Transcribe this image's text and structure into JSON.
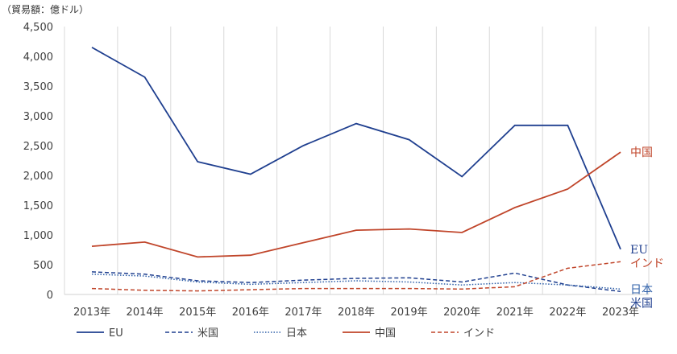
{
  "chart_data": {
    "type": "line",
    "unit_label": "（貿易額：億ドル）",
    "categories": [
      "2013年",
      "2014年",
      "2015年",
      "2016年",
      "2017年",
      "2018年",
      "2019年",
      "2020年",
      "2021年",
      "2022年",
      "2023年"
    ],
    "ylim": [
      0,
      4500
    ],
    "yticks": [
      0,
      500,
      1000,
      1500,
      2000,
      2500,
      3000,
      3500,
      4000,
      4500
    ],
    "ytick_labels": [
      "0",
      "500",
      "1,000",
      "1,500",
      "2,000",
      "2,500",
      "3,000",
      "3,500",
      "4,000",
      "4,500"
    ],
    "grid": "vertical",
    "legend_position": "bottom",
    "series": [
      {
        "name": "EU",
        "end_label": "EU",
        "color": "#1f3f8f",
        "dash": "solid",
        "values": [
          4150,
          3650,
          2230,
          2020,
          2500,
          2870,
          2600,
          1980,
          2840,
          2840,
          760
        ]
      },
      {
        "name": "米国",
        "end_label": "米国",
        "color": "#1f3f8f",
        "dash": "dashed",
        "values": [
          380,
          340,
          230,
          200,
          240,
          270,
          280,
          210,
          360,
          160,
          50
        ]
      },
      {
        "name": "日本",
        "end_label": "日本",
        "color": "#2e5fa8",
        "dash": "dotted",
        "values": [
          340,
          310,
          210,
          170,
          200,
          230,
          210,
          160,
          200,
          160,
          90
        ]
      },
      {
        "name": "中国",
        "end_label": "中国",
        "color": "#c0452a",
        "dash": "solid",
        "values": [
          810,
          880,
          630,
          660,
          870,
          1080,
          1100,
          1040,
          1460,
          1770,
          2390
        ]
      },
      {
        "name": "インド",
        "end_label": "インド",
        "color": "#c0452a",
        "dash": "dashed",
        "values": [
          100,
          70,
          60,
          80,
          100,
          100,
          100,
          90,
          130,
          440,
          550
        ]
      }
    ]
  }
}
